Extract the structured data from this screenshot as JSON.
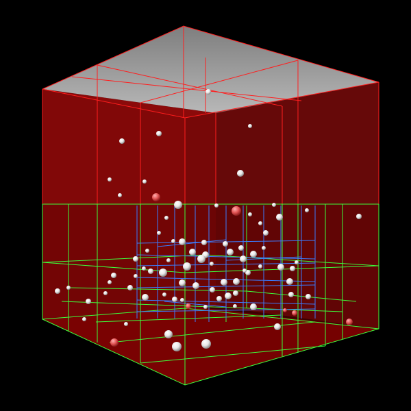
{
  "scene": {
    "background_color": "#000000",
    "top_face_color": "#9a9a9a",
    "left_face_color": "#8e0b0b",
    "right_face_color": "#6a0c0c",
    "bottom_face_color": "#a00000",
    "red_grid_color": "#ff2020",
    "green_grid_color": "#44ff44",
    "blue_grid_color": "#3a7bff",
    "sphere_light_color": "#ffffff",
    "sphere_red_color": "#e05050"
  }
}
